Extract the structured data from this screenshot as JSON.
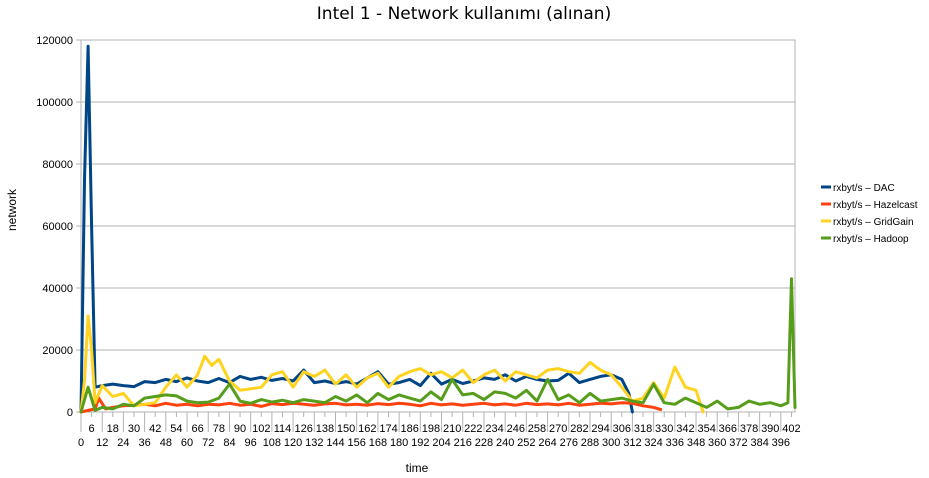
{
  "chart_data": {
    "type": "line",
    "title": "Intel 1 - Network kullanımı (alınan)",
    "xlabel": "time",
    "ylabel": "network",
    "xlim": [
      0,
      404
    ],
    "ylim": [
      0,
      120000
    ],
    "y_ticks": [
      0,
      20000,
      40000,
      60000,
      80000,
      100000,
      120000
    ],
    "x_ticks_bottom": [
      0,
      12,
      24,
      36,
      48,
      60,
      72,
      84,
      96,
      108,
      120,
      132,
      144,
      156,
      168,
      180,
      192,
      204,
      216,
      228,
      240,
      252,
      264,
      276,
      288,
      300,
      312,
      324,
      336,
      348,
      360,
      372,
      384,
      396
    ],
    "x_ticks_top": [
      6,
      18,
      30,
      42,
      54,
      66,
      78,
      90,
      102,
      114,
      126,
      138,
      150,
      162,
      174,
      186,
      198,
      210,
      222,
      234,
      246,
      258,
      270,
      282,
      294,
      306,
      318,
      330,
      342,
      354,
      366,
      378,
      390,
      402
    ],
    "grid": true,
    "legend_position": "right",
    "series": [
      {
        "name": "rxbyt/s – DAC",
        "color": "#004586",
        "x": [
          0,
          2,
          4,
          6,
          8,
          12,
          18,
          24,
          30,
          36,
          42,
          48,
          54,
          60,
          66,
          72,
          78,
          84,
          90,
          96,
          102,
          108,
          114,
          120,
          126,
          132,
          138,
          144,
          150,
          156,
          162,
          168,
          174,
          180,
          186,
          192,
          198,
          204,
          210,
          216,
          222,
          228,
          234,
          240,
          246,
          252,
          258,
          264,
          270,
          276,
          282,
          288,
          294,
          300,
          306,
          310,
          312
        ],
        "values": [
          0,
          75000,
          118000,
          60000,
          8000,
          8500,
          9000,
          8500,
          8200,
          9800,
          9500,
          10500,
          9800,
          11000,
          10000,
          9500,
          10800,
          9500,
          11500,
          10500,
          11200,
          10200,
          10800,
          10000,
          13500,
          9500,
          10000,
          9200,
          9800,
          9000,
          11000,
          13000,
          9000,
          9500,
          10500,
          8500,
          12500,
          9000,
          10500,
          9200,
          10000,
          11000,
          10500,
          12000,
          10000,
          11500,
          10500,
          10000,
          10200,
          12500,
          9500,
          10500,
          11500,
          12000,
          10500,
          6000,
          0
        ]
      },
      {
        "name": "rxbyt/s – Hazelcast",
        "color": "#ff420e",
        "x": [
          0,
          4,
          8,
          10,
          14,
          18,
          24,
          30,
          36,
          42,
          48,
          54,
          60,
          66,
          72,
          78,
          84,
          90,
          96,
          102,
          108,
          114,
          120,
          126,
          132,
          138,
          144,
          150,
          156,
          162,
          168,
          174,
          180,
          186,
          192,
          198,
          204,
          210,
          216,
          222,
          228,
          234,
          240,
          246,
          252,
          258,
          264,
          270,
          276,
          282,
          288,
          294,
          300,
          306,
          312,
          318,
          324,
          328
        ],
        "values": [
          0,
          500,
          1000,
          4500,
          1000,
          1500,
          2000,
          2200,
          2500,
          2000,
          2800,
          2200,
          2500,
          2000,
          2500,
          2300,
          2800,
          2200,
          2500,
          1800,
          2700,
          2400,
          2800,
          2500,
          2200,
          2600,
          2800,
          2300,
          2500,
          2200,
          2700,
          2400,
          2800,
          2500,
          2000,
          2800,
          2300,
          2600,
          2200,
          2500,
          2800,
          2300,
          2600,
          2200,
          2800,
          2400,
          2600,
          2300,
          2800,
          2200,
          2500,
          2800,
          2600,
          3000,
          2800,
          2000,
          1500,
          800
        ]
      },
      {
        "name": "rxbyt/s – GridGain",
        "color": "#ffd320",
        "x": [
          0,
          2,
          4,
          6,
          8,
          12,
          18,
          24,
          30,
          36,
          42,
          48,
          54,
          60,
          66,
          70,
          74,
          78,
          84,
          90,
          96,
          102,
          108,
          114,
          120,
          126,
          132,
          138,
          144,
          150,
          156,
          162,
          168,
          174,
          180,
          186,
          192,
          198,
          204,
          210,
          216,
          222,
          228,
          234,
          240,
          246,
          252,
          258,
          264,
          270,
          276,
          282,
          288,
          294,
          300,
          306,
          312,
          318,
          324,
          330,
          336,
          342,
          348,
          352
        ],
        "values": [
          0,
          10000,
          31000,
          20000,
          3000,
          8500,
          5000,
          6000,
          2000,
          2500,
          3000,
          8000,
          12000,
          8000,
          12000,
          18000,
          15000,
          17000,
          10000,
          7000,
          7500,
          8000,
          12000,
          13000,
          8000,
          13000,
          11500,
          13500,
          9000,
          12000,
          8000,
          11000,
          12500,
          8000,
          11500,
          13000,
          14000,
          12000,
          13000,
          11000,
          13500,
          9500,
          12000,
          13500,
          10000,
          13000,
          12000,
          11000,
          13500,
          14000,
          13000,
          12500,
          16000,
          13500,
          12000,
          8000,
          3500,
          4500,
          9500,
          4500,
          14500,
          8000,
          7000,
          0
        ]
      },
      {
        "name": "rxbyt/s – Hadoop",
        "color": "#579d1c",
        "x": [
          0,
          4,
          8,
          12,
          18,
          24,
          30,
          36,
          42,
          48,
          54,
          60,
          66,
          72,
          78,
          84,
          90,
          96,
          102,
          108,
          114,
          120,
          126,
          132,
          138,
          144,
          150,
          156,
          162,
          168,
          174,
          180,
          186,
          192,
          198,
          204,
          210,
          216,
          222,
          228,
          234,
          240,
          246,
          252,
          258,
          264,
          270,
          276,
          282,
          288,
          294,
          300,
          306,
          312,
          318,
          324,
          330,
          336,
          342,
          348,
          354,
          360,
          366,
          372,
          378,
          384,
          390,
          396,
          400,
          402,
          404
        ],
        "values": [
          0,
          8000,
          500,
          1500,
          1000,
          2500,
          2000,
          4500,
          5000,
          5500,
          5200,
          3500,
          3000,
          3200,
          4500,
          9000,
          3500,
          2800,
          4000,
          3200,
          3800,
          3000,
          4000,
          3500,
          3000,
          5000,
          3500,
          5500,
          3000,
          6000,
          4000,
          5500,
          4500,
          3500,
          6500,
          4000,
          10500,
          5500,
          6000,
          4000,
          6500,
          6000,
          4500,
          7000,
          3500,
          10500,
          4000,
          5500,
          3000,
          6000,
          3500,
          4000,
          4500,
          3500,
          3000,
          9000,
          3000,
          2500,
          4500,
          3000,
          1500,
          3500,
          1000,
          1500,
          3500,
          2500,
          3000,
          2000,
          3000,
          43000,
          1500
        ]
      }
    ]
  }
}
